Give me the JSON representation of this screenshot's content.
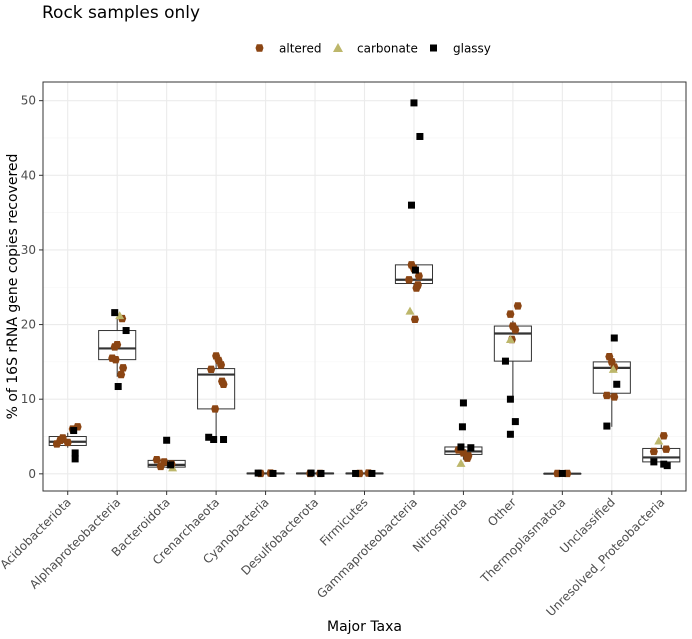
{
  "chart_data": {
    "type": "boxplot",
    "title": "Rock samples only",
    "xlabel": "Major Taxa",
    "ylabel": "% of 16S rRNA gene copies recovered",
    "ylim": [
      -2.3,
      52.5
    ],
    "yticks": [
      0,
      10,
      20,
      30,
      40,
      50
    ],
    "grid": true,
    "legend_position": "top",
    "categories": [
      "Acidobacteriota",
      "Alphaproteobacteria",
      "Bacteroidota",
      "Crenarchaeota",
      "Cyanobacteria",
      "Desulfobacterota",
      "Firmicutes",
      "Gammaproteobacteria",
      "Nitrospirota",
      "Other",
      "Thermoplasmatota",
      "Unclassified",
      "Unresolved_Proteobacteria"
    ],
    "boxes": [
      {
        "q1": 3.8,
        "median": 4.3,
        "q3": 5.0,
        "whisker_low": 3.5,
        "whisker_high": 5.5
      },
      {
        "q1": 15.3,
        "median": 16.8,
        "q3": 19.2,
        "whisker_low": 13.0,
        "whisker_high": 21.0
      },
      {
        "q1": 0.9,
        "median": 1.2,
        "q3": 1.8,
        "whisker_low": 0.8,
        "whisker_high": 2.0
      },
      {
        "q1": 8.7,
        "median": 13.3,
        "q3": 14.1,
        "whisker_low": 4.6,
        "whisker_high": 15.8
      },
      {
        "q1": 0.0,
        "median": 0.05,
        "q3": 0.1,
        "whisker_low": 0.0,
        "whisker_high": 0.15
      },
      {
        "q1": 0.0,
        "median": 0.05,
        "q3": 0.1,
        "whisker_low": 0.0,
        "whisker_high": 0.15
      },
      {
        "q1": 0.0,
        "median": 0.05,
        "q3": 0.1,
        "whisker_low": 0.0,
        "whisker_high": 0.15
      },
      {
        "q1": 25.5,
        "median": 26.0,
        "q3": 28.0,
        "whisker_low": 24.8,
        "whisker_high": 28.0
      },
      {
        "q1": 2.6,
        "median": 3.0,
        "q3": 3.6,
        "whisker_low": 1.9,
        "whisker_high": 4.0
      },
      {
        "q1": 15.1,
        "median": 18.8,
        "q3": 19.8,
        "whisker_low": 10.0,
        "whisker_high": 20.5
      },
      {
        "q1": 0.0,
        "median": 0.02,
        "q3": 0.05,
        "whisker_low": 0.0,
        "whisker_high": 0.06
      },
      {
        "q1": 10.8,
        "median": 14.2,
        "q3": 15.0,
        "whisker_low": 6.3,
        "whisker_high": 15.0
      },
      {
        "q1": 1.6,
        "median": 2.2,
        "q3": 3.4,
        "whisker_low": 1.1,
        "whisker_high": 3.9
      }
    ],
    "series": [
      {
        "name": "altered",
        "shape": "circle",
        "color": "#8B4513",
        "points": [
          {
            "category": 0,
            "jitter": -0.22,
            "y": 4.0
          },
          {
            "category": 0,
            "jitter": -0.1,
            "y": 4.8
          },
          {
            "category": 0,
            "jitter": 0.0,
            "y": 4.2
          },
          {
            "category": 0,
            "jitter": 0.1,
            "y": 6.0
          },
          {
            "category": 0,
            "jitter": 0.2,
            "y": 6.3
          },
          {
            "category": 0,
            "jitter": -0.15,
            "y": 4.5
          },
          {
            "category": 1,
            "jitter": -0.05,
            "y": 17.0
          },
          {
            "category": 1,
            "jitter": -0.1,
            "y": 15.5
          },
          {
            "category": 1,
            "jitter": -0.03,
            "y": 15.3
          },
          {
            "category": 1,
            "jitter": 0.12,
            "y": 14.2
          },
          {
            "category": 1,
            "jitter": 0.08,
            "y": 13.3
          },
          {
            "category": 1,
            "jitter": 0.0,
            "y": 17.3
          },
          {
            "category": 1,
            "jitter": 0.1,
            "y": 20.8
          },
          {
            "category": 2,
            "jitter": -0.2,
            "y": 1.9
          },
          {
            "category": 2,
            "jitter": -0.05,
            "y": 1.6
          },
          {
            "category": 2,
            "jitter": 0.1,
            "y": 1.3
          },
          {
            "category": 2,
            "jitter": -0.12,
            "y": 1.0
          },
          {
            "category": 3,
            "jitter": 0.0,
            "y": 15.8
          },
          {
            "category": 3,
            "jitter": 0.05,
            "y": 15.2
          },
          {
            "category": 3,
            "jitter": 0.1,
            "y": 14.6
          },
          {
            "category": 3,
            "jitter": -0.1,
            "y": 14.0
          },
          {
            "category": 3,
            "jitter": 0.12,
            "y": 12.4
          },
          {
            "category": 3,
            "jitter": 0.15,
            "y": 12.0
          },
          {
            "category": 3,
            "jitter": -0.02,
            "y": 8.7
          },
          {
            "category": 4,
            "jitter": -0.1,
            "y": 0.05
          },
          {
            "category": 4,
            "jitter": 0.1,
            "y": 0.1
          },
          {
            "category": 5,
            "jitter": -0.1,
            "y": 0.05
          },
          {
            "category": 5,
            "jitter": 0.1,
            "y": 0.05
          },
          {
            "category": 6,
            "jitter": -0.1,
            "y": 0.05
          },
          {
            "category": 6,
            "jitter": 0.08,
            "y": 0.1
          },
          {
            "category": 7,
            "jitter": -0.05,
            "y": 28.0
          },
          {
            "category": 7,
            "jitter": 0.0,
            "y": 27.5
          },
          {
            "category": 7,
            "jitter": 0.1,
            "y": 26.5
          },
          {
            "category": 7,
            "jitter": -0.1,
            "y": 26.0
          },
          {
            "category": 7,
            "jitter": 0.08,
            "y": 25.3
          },
          {
            "category": 7,
            "jitter": 0.05,
            "y": 24.9
          },
          {
            "category": 7,
            "jitter": 0.02,
            "y": 20.7
          },
          {
            "category": 8,
            "jitter": -0.1,
            "y": 3.2
          },
          {
            "category": 8,
            "jitter": 0.0,
            "y": 2.8
          },
          {
            "category": 8,
            "jitter": 0.1,
            "y": 2.4
          },
          {
            "category": 8,
            "jitter": 0.08,
            "y": 2.1
          },
          {
            "category": 9,
            "jitter": -0.05,
            "y": 21.4
          },
          {
            "category": 9,
            "jitter": 0.1,
            "y": 22.5
          },
          {
            "category": 9,
            "jitter": 0.0,
            "y": 19.8
          },
          {
            "category": 9,
            "jitter": 0.05,
            "y": 19.3
          },
          {
            "category": 9,
            "jitter": -0.02,
            "y": 18.0
          },
          {
            "category": 10,
            "jitter": -0.1,
            "y": 0.05
          },
          {
            "category": 10,
            "jitter": 0.1,
            "y": 0.05
          },
          {
            "category": 11,
            "jitter": -0.05,
            "y": 15.7
          },
          {
            "category": 11,
            "jitter": 0.0,
            "y": 15.0
          },
          {
            "category": 11,
            "jitter": 0.05,
            "y": 14.3
          },
          {
            "category": 11,
            "jitter": -0.1,
            "y": 10.5
          },
          {
            "category": 11,
            "jitter": 0.05,
            "y": 10.3
          },
          {
            "category": 12,
            "jitter": 0.05,
            "y": 5.1
          },
          {
            "category": 12,
            "jitter": 0.1,
            "y": 3.3
          },
          {
            "category": 12,
            "jitter": -0.15,
            "y": 3.0
          }
        ]
      },
      {
        "name": "carbonate",
        "shape": "triangle",
        "color": "#BDB76B",
        "points": [
          {
            "category": 1,
            "jitter": 0.05,
            "y": 21.2
          },
          {
            "category": 2,
            "jitter": 0.12,
            "y": 0.8
          },
          {
            "category": 7,
            "jitter": -0.08,
            "y": 21.8
          },
          {
            "category": 8,
            "jitter": -0.05,
            "y": 1.4
          },
          {
            "category": 9,
            "jitter": -0.05,
            "y": 18.0
          },
          {
            "category": 11,
            "jitter": 0.03,
            "y": 14.0
          },
          {
            "category": 12,
            "jitter": -0.05,
            "y": 4.4
          }
        ]
      },
      {
        "name": "glassy",
        "shape": "square",
        "color": "#000000",
        "points": [
          {
            "category": 0,
            "jitter": 0.12,
            "y": 5.8
          },
          {
            "category": 0,
            "jitter": 0.15,
            "y": 2.8
          },
          {
            "category": 0,
            "jitter": 0.15,
            "y": 2.0
          },
          {
            "category": 1,
            "jitter": 0.18,
            "y": 19.2
          },
          {
            "category": 1,
            "jitter": -0.05,
            "y": 21.6
          },
          {
            "category": 1,
            "jitter": 0.02,
            "y": 11.7
          },
          {
            "category": 2,
            "jitter": 0.0,
            "y": 4.5
          },
          {
            "category": 2,
            "jitter": 0.08,
            "y": 1.2
          },
          {
            "category": 3,
            "jitter": -0.15,
            "y": 4.9
          },
          {
            "category": 3,
            "jitter": -0.05,
            "y": 4.6
          },
          {
            "category": 3,
            "jitter": 0.15,
            "y": 4.6
          },
          {
            "category": 4,
            "jitter": -0.15,
            "y": 0.1
          },
          {
            "category": 4,
            "jitter": 0.15,
            "y": 0.05
          },
          {
            "category": 5,
            "jitter": -0.08,
            "y": 0.1
          },
          {
            "category": 5,
            "jitter": 0.12,
            "y": 0.05
          },
          {
            "category": 6,
            "jitter": -0.18,
            "y": 0.05
          },
          {
            "category": 6,
            "jitter": 0.15,
            "y": 0.05
          },
          {
            "category": 7,
            "jitter": 0.0,
            "y": 49.7
          },
          {
            "category": 7,
            "jitter": 0.12,
            "y": 45.2
          },
          {
            "category": 7,
            "jitter": -0.05,
            "y": 36.0
          },
          {
            "category": 7,
            "jitter": 0.03,
            "y": 27.3
          },
          {
            "category": 8,
            "jitter": 0.0,
            "y": 9.5
          },
          {
            "category": 8,
            "jitter": -0.02,
            "y": 6.3
          },
          {
            "category": 8,
            "jitter": -0.05,
            "y": 3.6
          },
          {
            "category": 8,
            "jitter": 0.15,
            "y": 3.5
          },
          {
            "category": 9,
            "jitter": -0.15,
            "y": 15.1
          },
          {
            "category": 9,
            "jitter": -0.05,
            "y": 10.0
          },
          {
            "category": 9,
            "jitter": 0.05,
            "y": 7.0
          },
          {
            "category": 9,
            "jitter": -0.05,
            "y": 5.3
          },
          {
            "category": 10,
            "jitter": 0.0,
            "y": 0.05
          },
          {
            "category": 11,
            "jitter": 0.05,
            "y": 18.2
          },
          {
            "category": 11,
            "jitter": 0.1,
            "y": 12.0
          },
          {
            "category": 11,
            "jitter": -0.1,
            "y": 6.4
          },
          {
            "category": 12,
            "jitter": -0.15,
            "y": 1.6
          },
          {
            "category": 12,
            "jitter": 0.05,
            "y": 1.3
          },
          {
            "category": 12,
            "jitter": 0.12,
            "y": 1.1
          }
        ]
      }
    ]
  }
}
